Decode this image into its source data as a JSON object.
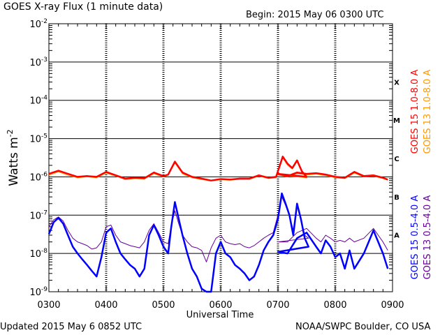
{
  "header": {
    "title": "GOES X-ray Flux (1 minute data)",
    "begin": "Begin: 2015 May 06 0300 UTC"
  },
  "footer": {
    "updated": "Updated 2015 May  6 0852 UTC",
    "credit": "NOAA/SWPC Boulder, CO USA"
  },
  "chart_data": {
    "type": "line",
    "title": "GOES X-ray Flux (1 minute data)",
    "xlabel": "Universal Time",
    "ylabel": "Watts m-2",
    "ylabel_parts": {
      "base": "Watts m",
      "exp": "-2"
    },
    "yscale": "log",
    "ylim": [
      1e-09,
      0.01
    ],
    "xlim": [
      "0300",
      "0900"
    ],
    "x_ticks": [
      "0300",
      "0400",
      "0500",
      "0600",
      "0700",
      "0800",
      "0900"
    ],
    "y_ticks": [
      {
        "base": "10",
        "exp": "-9",
        "value": 1e-09
      },
      {
        "base": "10",
        "exp": "-8",
        "value": 1e-08
      },
      {
        "base": "10",
        "exp": "-7",
        "value": 1e-07
      },
      {
        "base": "10",
        "exp": "-6",
        "value": 1e-06
      },
      {
        "base": "10",
        "exp": "-5",
        "value": 1e-05
      },
      {
        "base": "10",
        "exp": "-4",
        "value": 0.0001
      },
      {
        "base": "10",
        "exp": "-3",
        "value": 0.001
      },
      {
        "base": "10",
        "exp": "-2",
        "value": 0.01
      }
    ],
    "flare_classes": [
      {
        "label": "A",
        "value": 1e-08
      },
      {
        "label": "B",
        "value": 1e-07
      },
      {
        "label": "C",
        "value": 1e-06
      },
      {
        "label": "M",
        "value": 1e-05
      },
      {
        "label": "X",
        "value": 0.0001
      }
    ],
    "grid": true,
    "legend_position": "right",
    "series": [
      {
        "name": "GOES 15 1.0-8.0 A",
        "color": "#ff0000",
        "line_width": 2.5,
        "points": [
          [
            "0300",
            1.2e-06
          ],
          [
            "0310",
            1.45e-06
          ],
          [
            "0320",
            1.2e-06
          ],
          [
            "0330",
            1e-06
          ],
          [
            "0340",
            1.05e-06
          ],
          [
            "0350",
            1e-06
          ],
          [
            "0400",
            1.35e-06
          ],
          [
            "0410",
            1.1e-06
          ],
          [
            "0420",
            9e-07
          ],
          [
            "0430",
            9.5e-07
          ],
          [
            "0440",
            9.2e-07
          ],
          [
            "0450",
            1.3e-06
          ],
          [
            "0500",
            1.05e-06
          ],
          [
            "0505",
            1.15e-06
          ],
          [
            "0512",
            2.5e-06
          ],
          [
            "0520",
            1.3e-06
          ],
          [
            "0530",
            1e-06
          ],
          [
            "0540",
            9e-07
          ],
          [
            "0550",
            8e-07
          ],
          [
            "0600",
            8.8e-07
          ],
          [
            "0610",
            8.5e-07
          ],
          [
            "0620",
            9e-07
          ],
          [
            "0630",
            9e-07
          ],
          [
            "0640",
            1.1e-06
          ],
          [
            "0650",
            9.5e-07
          ],
          [
            "0658",
            1e-06
          ],
          [
            "0665",
            3.4e-06
          ],
          [
            "0670",
            2.2e-06
          ],
          [
            "0675",
            1.7e-06
          ],
          [
            "0680",
            2.7e-06
          ],
          [
            "0685",
            1.4e-06
          ],
          [
            "0690",
            1e-06
          ],
          [
            "0700",
            1.2e-06
          ],
          [
            "0710",
            1.05e-06
          ],
          [
            "0720",
            1.3e-06
          ],
          [
            "0730",
            1.2e-06
          ],
          [
            "0740",
            1.25e-06
          ],
          [
            "0750",
            1.15e-06
          ],
          [
            "0800",
            1e-06
          ],
          [
            "0810",
            9.5e-07
          ],
          [
            "0820",
            1.35e-06
          ],
          [
            "0830",
            1.05e-06
          ],
          [
            "0840",
            1.1e-06
          ],
          [
            "0850",
            9.5e-07
          ],
          [
            "0855",
            8.5e-07
          ]
        ]
      },
      {
        "name": "GOES 13 1.0-8.0 A",
        "color": "#ff9900",
        "line_width": 1,
        "points": [
          [
            "0300",
            1.1e-06
          ],
          [
            "0310",
            1.35e-06
          ],
          [
            "0320",
            1.1e-06
          ],
          [
            "0330",
            9.5e-07
          ],
          [
            "0340",
            1e-06
          ],
          [
            "0350",
            9.5e-07
          ],
          [
            "0400",
            1.25e-06
          ],
          [
            "0410",
            1.05e-06
          ],
          [
            "0420",
            8.5e-07
          ],
          [
            "0430",
            9e-07
          ],
          [
            "0440",
            8.8e-07
          ],
          [
            "0450",
            1.2e-06
          ],
          [
            "0500",
            1e-06
          ],
          [
            "0505",
            1.1e-06
          ],
          [
            "0512",
            2.3e-06
          ],
          [
            "0520",
            1.2e-06
          ],
          [
            "0530",
            9.5e-07
          ],
          [
            "0540",
            8.5e-07
          ],
          [
            "0550",
            7.8e-07
          ],
          [
            "0600",
            8.4e-07
          ],
          [
            "0610",
            8.2e-07
          ],
          [
            "0620",
            8.6e-07
          ],
          [
            "0630",
            8.6e-07
          ],
          [
            "0640",
            1.05e-06
          ],
          [
            "0650",
            9e-07
          ],
          [
            "0658",
            9.5e-07
          ],
          [
            "0665",
            3.1e-06
          ],
          [
            "0670",
            2e-06
          ],
          [
            "0675",
            1.6e-06
          ],
          [
            "0680",
            2.5e-06
          ],
          [
            "0685",
            1.3e-06
          ],
          [
            "0690",
            9.5e-07
          ],
          [
            "0700",
            1.12e-06
          ],
          [
            "0710",
            1e-06
          ],
          [
            "0720",
            1.22e-06
          ],
          [
            "0730",
            1.12e-06
          ],
          [
            "0740",
            1.18e-06
          ],
          [
            "0750",
            1.08e-06
          ],
          [
            "0800",
            9.5e-07
          ],
          [
            "0810",
            9e-07
          ],
          [
            "0820",
            1.25e-06
          ],
          [
            "0830",
            1e-06
          ],
          [
            "0840",
            1.05e-06
          ],
          [
            "0850",
            9e-07
          ],
          [
            "0855",
            8.2e-07
          ]
        ]
      },
      {
        "name": "GOES 15 0.5-4.0 A",
        "color": "#0000ff",
        "line_width": 2.5,
        "points": [
          [
            "0300",
            3.2e-08
          ],
          [
            "0305",
            6.5e-08
          ],
          [
            "0310",
            8.5e-08
          ],
          [
            "0315",
            6e-08
          ],
          [
            "0320",
            3e-08
          ],
          [
            "0325",
            1.5e-08
          ],
          [
            "0330",
            1e-08
          ],
          [
            "0335",
            7e-09
          ],
          [
            "0340",
            5e-09
          ],
          [
            "0345",
            3.5e-09
          ],
          [
            "0350",
            2.5e-09
          ],
          [
            "0355",
            8e-09
          ],
          [
            "0400",
            3.5e-08
          ],
          [
            "0405",
            4.5e-08
          ],
          [
            "0410",
            2e-08
          ],
          [
            "0415",
            1e-08
          ],
          [
            "0420",
            7e-09
          ],
          [
            "0425",
            5e-09
          ],
          [
            "0430",
            4e-09
          ],
          [
            "0435",
            2.5e-09
          ],
          [
            "0440",
            4e-09
          ],
          [
            "0445",
            3e-08
          ],
          [
            "0450",
            5.5e-08
          ],
          [
            "0455",
            3e-08
          ],
          [
            "0500",
            1.5e-08
          ],
          [
            "0505",
            1e-08
          ],
          [
            "0508",
            4.5e-08
          ],
          [
            "0512",
            2.2e-07
          ],
          [
            "0516",
            8e-08
          ],
          [
            "0520",
            3e-08
          ],
          [
            "0525",
            1e-08
          ],
          [
            "0530",
            4e-09
          ],
          [
            "0535",
            2.5e-09
          ],
          [
            "0540",
            1.2e-09
          ],
          [
            "0545",
            1e-09
          ],
          [
            "0550",
            1e-09
          ],
          [
            "0555",
            1e-08
          ],
          [
            "0600",
            2e-08
          ],
          [
            "0605",
            1e-08
          ],
          [
            "0610",
            8e-09
          ],
          [
            "0615",
            5e-09
          ],
          [
            "0620",
            4e-09
          ],
          [
            "0625",
            3e-09
          ],
          [
            "0630",
            2e-09
          ],
          [
            "0635",
            2.5e-09
          ],
          [
            "0640",
            5e-09
          ],
          [
            "0645",
            1.2e-08
          ],
          [
            "0650",
            2e-08
          ],
          [
            "0655",
            3e-08
          ],
          [
            "0660",
            8e-08
          ],
          [
            "0664",
            3.7e-07
          ],
          [
            "0668",
            2e-07
          ],
          [
            "0672",
            1e-07
          ],
          [
            "0676",
            3e-08
          ],
          [
            "0680",
            2e-07
          ],
          [
            "0684",
            8e-08
          ],
          [
            "0688",
            2.5e-08
          ],
          [
            "0692",
            1.5e-08
          ],
          [
            "0700",
            1.1e-08
          ],
          [
            "0710",
            1e-08
          ],
          [
            "0720",
            2.5e-08
          ],
          [
            "0730",
            3.5e-08
          ],
          [
            "0740",
            1.5e-08
          ],
          [
            "0745",
            1e-08
          ],
          [
            "0750",
            2.2e-08
          ],
          [
            "0755",
            1.5e-08
          ],
          [
            "0800",
            8e-09
          ],
          [
            "0805",
            1e-08
          ],
          [
            "0810",
            4e-09
          ],
          [
            "0815",
            1.2e-08
          ],
          [
            "0820",
            4e-09
          ],
          [
            "0830",
            1e-08
          ],
          [
            "0840",
            4e-08
          ],
          [
            "0845",
            2e-08
          ],
          [
            "0850",
            1e-08
          ],
          [
            "0855",
            4e-09
          ]
        ]
      },
      {
        "name": "GOES 13 0.5-4.0 A",
        "color": "#660099",
        "line_width": 1,
        "points": [
          [
            "0300",
            5e-08
          ],
          [
            "0305",
            7.5e-08
          ],
          [
            "0310",
            9e-08
          ],
          [
            "0315",
            7e-08
          ],
          [
            "0320",
            4e-08
          ],
          [
            "0325",
            2.5e-08
          ],
          [
            "0330",
            2e-08
          ],
          [
            "0335",
            1.8e-08
          ],
          [
            "0340",
            1.6e-08
          ],
          [
            "0345",
            1.3e-08
          ],
          [
            "0350",
            1.4e-08
          ],
          [
            "0355",
            2e-08
          ],
          [
            "0400",
            5e-08
          ],
          [
            "0405",
            5.5e-08
          ],
          [
            "0410",
            3e-08
          ],
          [
            "0415",
            2e-08
          ],
          [
            "0420",
            1.8e-08
          ],
          [
            "0425",
            1.6e-08
          ],
          [
            "0430",
            1.5e-08
          ],
          [
            "0435",
            1.4e-08
          ],
          [
            "0440",
            2e-08
          ],
          [
            "0445",
            4e-08
          ],
          [
            "0450",
            6e-08
          ],
          [
            "0455",
            3.5e-08
          ],
          [
            "0500",
            2e-08
          ],
          [
            "0505",
            1.8e-08
          ],
          [
            "0508",
            5e-08
          ],
          [
            "0512",
            1.3e-07
          ],
          [
            "0516",
            6e-08
          ],
          [
            "0520",
            3e-08
          ],
          [
            "0525",
            2e-08
          ],
          [
            "0530",
            1.5e-08
          ],
          [
            "0535",
            1.4e-08
          ],
          [
            "0540",
            1.2e-08
          ],
          [
            "0545",
            6e-09
          ],
          [
            "0550",
            1.4e-08
          ],
          [
            "0555",
            2.5e-08
          ],
          [
            "0600",
            3e-08
          ],
          [
            "0605",
            2e-08
          ],
          [
            "0610",
            1.8e-08
          ],
          [
            "0615",
            1.7e-08
          ],
          [
            "0620",
            1.8e-08
          ],
          [
            "0625",
            1.5e-08
          ],
          [
            "0630",
            1.4e-08
          ],
          [
            "0635",
            1.6e-08
          ],
          [
            "0640",
            2e-08
          ],
          [
            "0645",
            2.5e-08
          ],
          [
            "0650",
            3e-08
          ],
          [
            "0655",
            3.5e-08
          ],
          [
            "0660",
            1e-07
          ],
          [
            "0664",
            3e-07
          ],
          [
            "0668",
            1.8e-07
          ],
          [
            "0672",
            1e-07
          ],
          [
            "0676",
            4e-08
          ],
          [
            "0680",
            1.8e-07
          ],
          [
            "0684",
            8e-08
          ],
          [
            "0688",
            3e-08
          ],
          [
            "0692",
            2.5e-08
          ],
          [
            "0700",
            2e-08
          ],
          [
            "0710",
            2e-08
          ],
          [
            "0720",
            3.5e-08
          ],
          [
            "0730",
            4.5e-08
          ],
          [
            "0740",
            2.5e-08
          ],
          [
            "0745",
            2e-08
          ],
          [
            "0750",
            3e-08
          ],
          [
            "0755",
            2.5e-08
          ],
          [
            "0800",
            2e-08
          ],
          [
            "0805",
            2.2e-08
          ],
          [
            "0810",
            2e-08
          ],
          [
            "0815",
            2.5e-08
          ],
          [
            "0820",
            2e-08
          ],
          [
            "0830",
            2.5e-08
          ],
          [
            "0840",
            4.5e-08
          ],
          [
            "0845",
            3e-08
          ],
          [
            "0850",
            2e-08
          ],
          [
            "0855",
            1.2e-08
          ]
        ]
      }
    ]
  }
}
